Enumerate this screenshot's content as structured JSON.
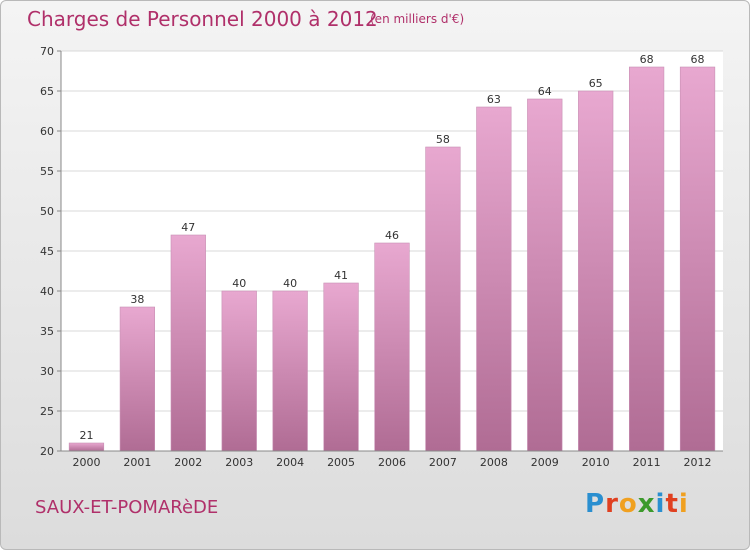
{
  "header": {
    "title": "Charges de Personnel 2000 à 2012",
    "unit": "(en milliers d'€)"
  },
  "footer": {
    "place": "SAUX-ET-POMARèDE",
    "logo": "Proxiti"
  },
  "colors": {
    "title": "#b0306a",
    "bar_top": "#e8a8d0",
    "bar_bottom": "#b06c94",
    "logo_letters": [
      "#2a8fd0",
      "#e04020",
      "#f0a020",
      "#3c9a2c",
      "#2a8fd0",
      "#e04020",
      "#f0a020"
    ]
  },
  "chart_data": {
    "type": "bar",
    "categories": [
      "2000",
      "2001",
      "2002",
      "2003",
      "2004",
      "2005",
      "2006",
      "2007",
      "2008",
      "2009",
      "2010",
      "2011",
      "2012"
    ],
    "values": [
      21,
      38,
      47,
      40,
      40,
      41,
      46,
      58,
      63,
      64,
      65,
      68,
      68
    ],
    "title": "Charges de Personnel 2000 à 2012",
    "xlabel": "",
    "ylabel": "",
    "ylim": [
      20,
      70
    ],
    "yticks": [
      20,
      25,
      30,
      35,
      40,
      45,
      50,
      55,
      60,
      65,
      70
    ],
    "grid": true,
    "legend": "none"
  }
}
